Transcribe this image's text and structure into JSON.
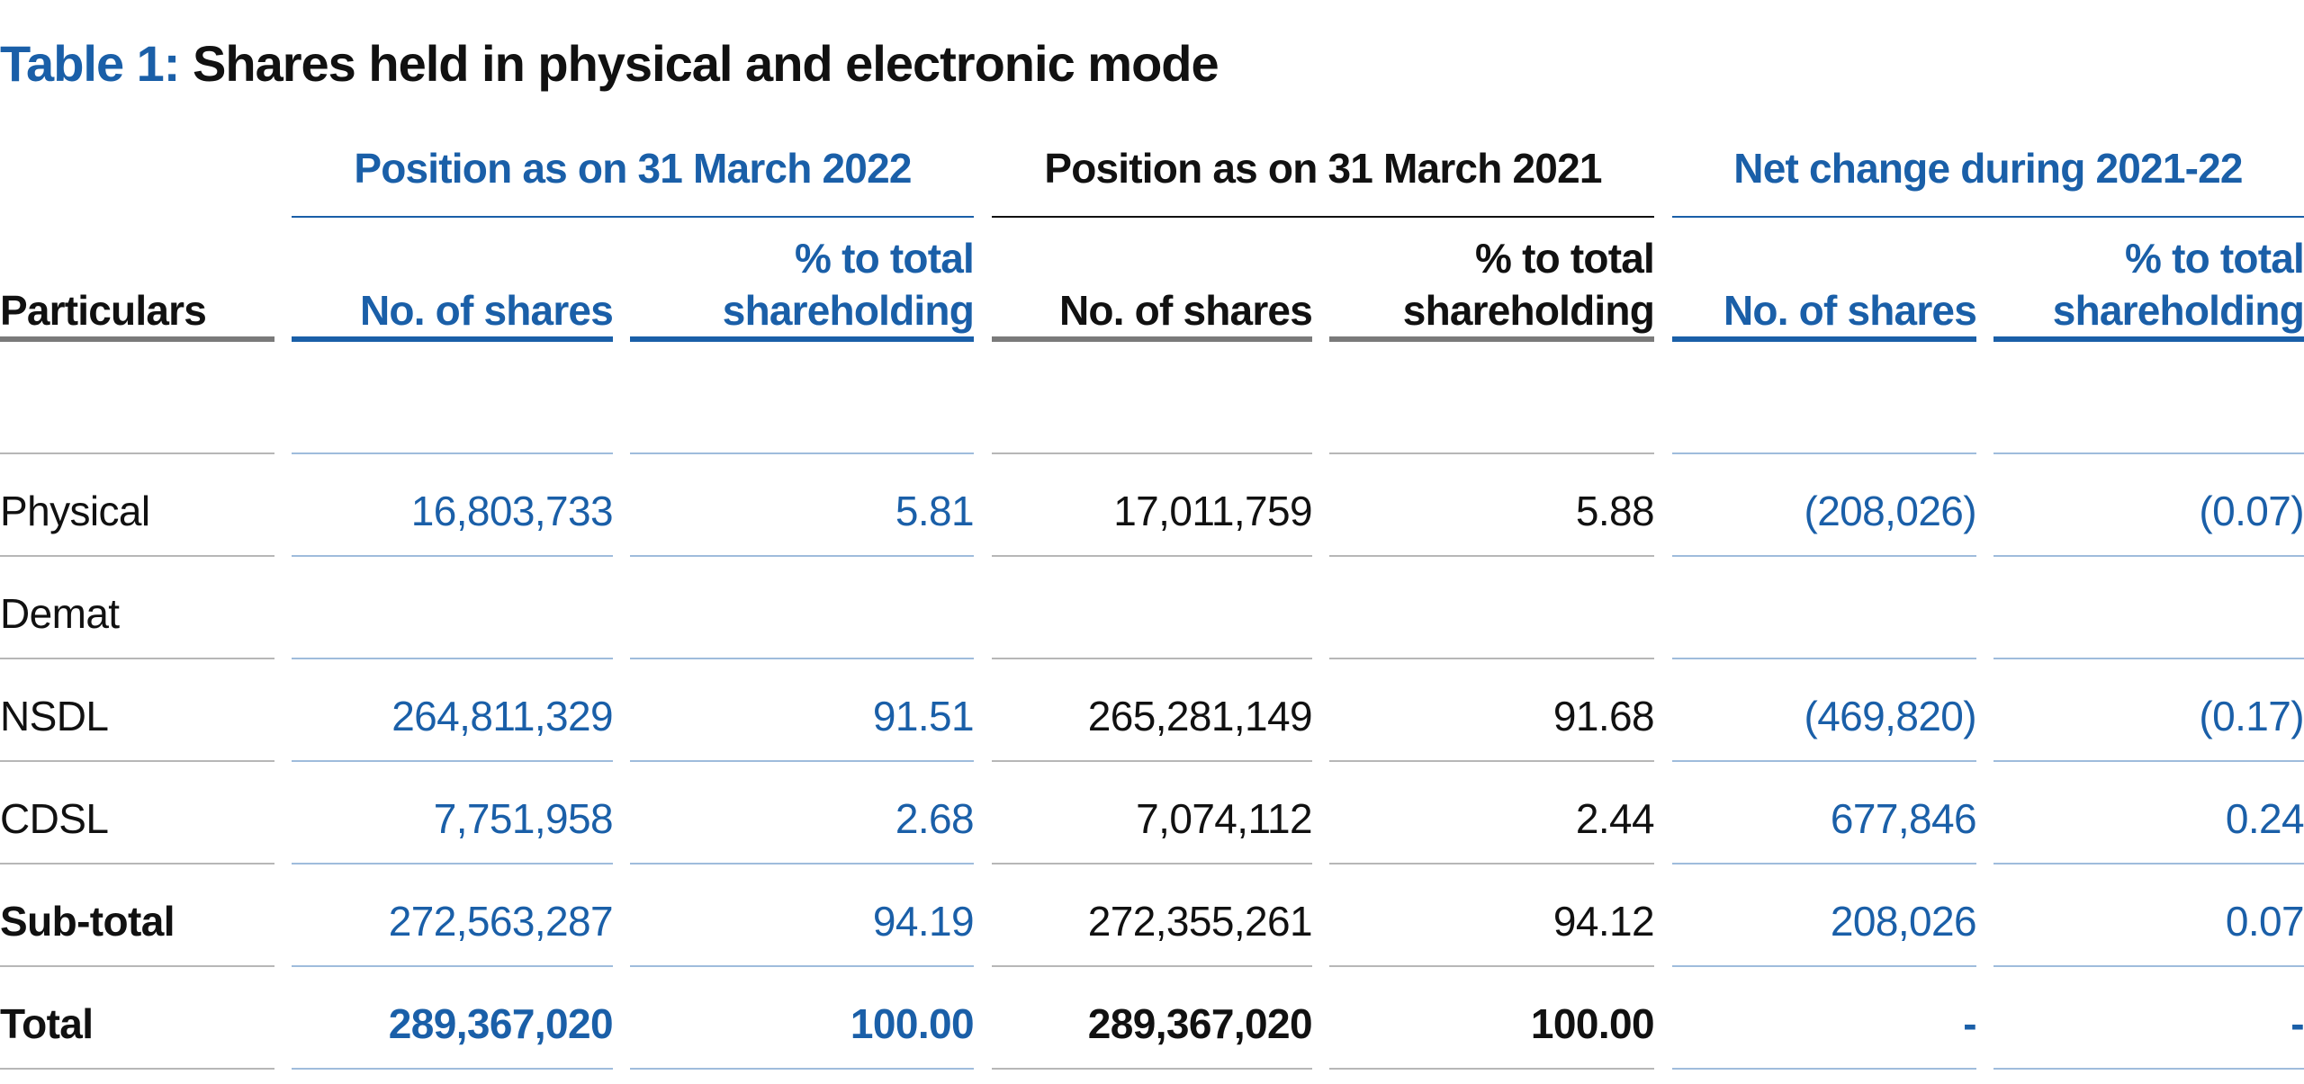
{
  "title": {
    "prefix": "Table 1:",
    "main": "Shares held in physical and electronic mode"
  },
  "groups": [
    "Position as on 31 March 2022",
    "Position as on 31 March 2021",
    "Net change during 2021-22"
  ],
  "columns": {
    "particulars": "Particulars",
    "no_of_shares": "No. of shares",
    "pct_total": "% to total\nshareholding"
  },
  "rows": [
    {
      "label": "Physical",
      "values": [
        "16,803,733",
        "5.81",
        "17,011,759",
        "5.88",
        "(208,026)",
        "(0.07)"
      ]
    },
    {
      "label": "Demat",
      "values": [
        "",
        "",
        "",
        "",
        "",
        ""
      ]
    },
    {
      "label": "NSDL",
      "values": [
        "264,811,329",
        "91.51",
        "265,281,149",
        "91.68",
        "(469,820)",
        "(0.17)"
      ]
    },
    {
      "label": "CDSL",
      "values": [
        "7,751,958",
        "2.68",
        "7,074,112",
        "2.44",
        "677,846",
        "0.24"
      ]
    },
    {
      "label": "Sub-total",
      "values": [
        "272,563,287",
        "94.19",
        "272,355,261",
        "94.12",
        "208,026",
        "0.07"
      ]
    },
    {
      "label": "Total",
      "values": [
        "289,367,020",
        "100.00",
        "289,367,020",
        "100.00",
        "-",
        "-"
      ]
    }
  ],
  "colors": {
    "accent": "#1a5fa8",
    "text": "#111111",
    "rule_grey": "#b7b7b7",
    "rule_blue": "#9fbcdc"
  }
}
